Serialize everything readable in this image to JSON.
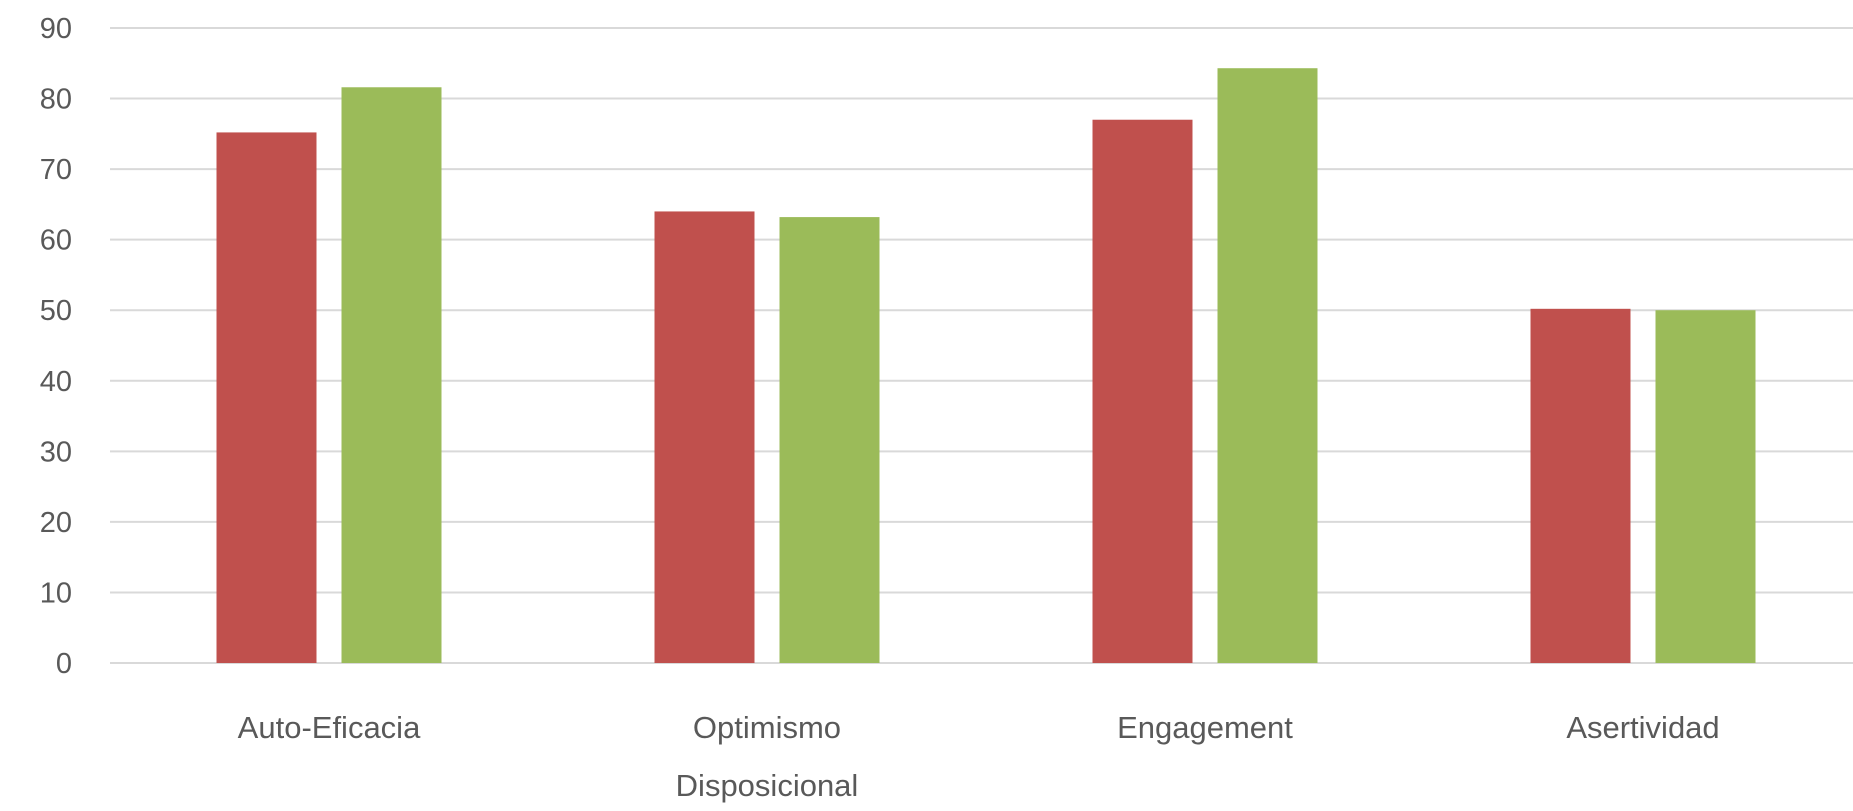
{
  "chart_data": {
    "type": "bar",
    "categories": [
      [
        "Auto-Eficacia"
      ],
      [
        "Optimismo",
        "Disposicional"
      ],
      [
        "Engagement"
      ],
      [
        "Asertividad"
      ]
    ],
    "series": [
      {
        "values": [
          75.2,
          64.0,
          77.0,
          50.2
        ],
        "color": "#c0504d"
      },
      {
        "values": [
          81.6,
          63.2,
          84.3,
          50.0
        ],
        "color": "#9bbb59"
      }
    ],
    "ylim": [
      0,
      90
    ],
    "yticks": [
      0,
      10,
      20,
      30,
      40,
      50,
      60,
      70,
      80,
      90
    ],
    "grid": true,
    "legend": "none",
    "title": "",
    "xlabel": "",
    "ylabel": ""
  }
}
